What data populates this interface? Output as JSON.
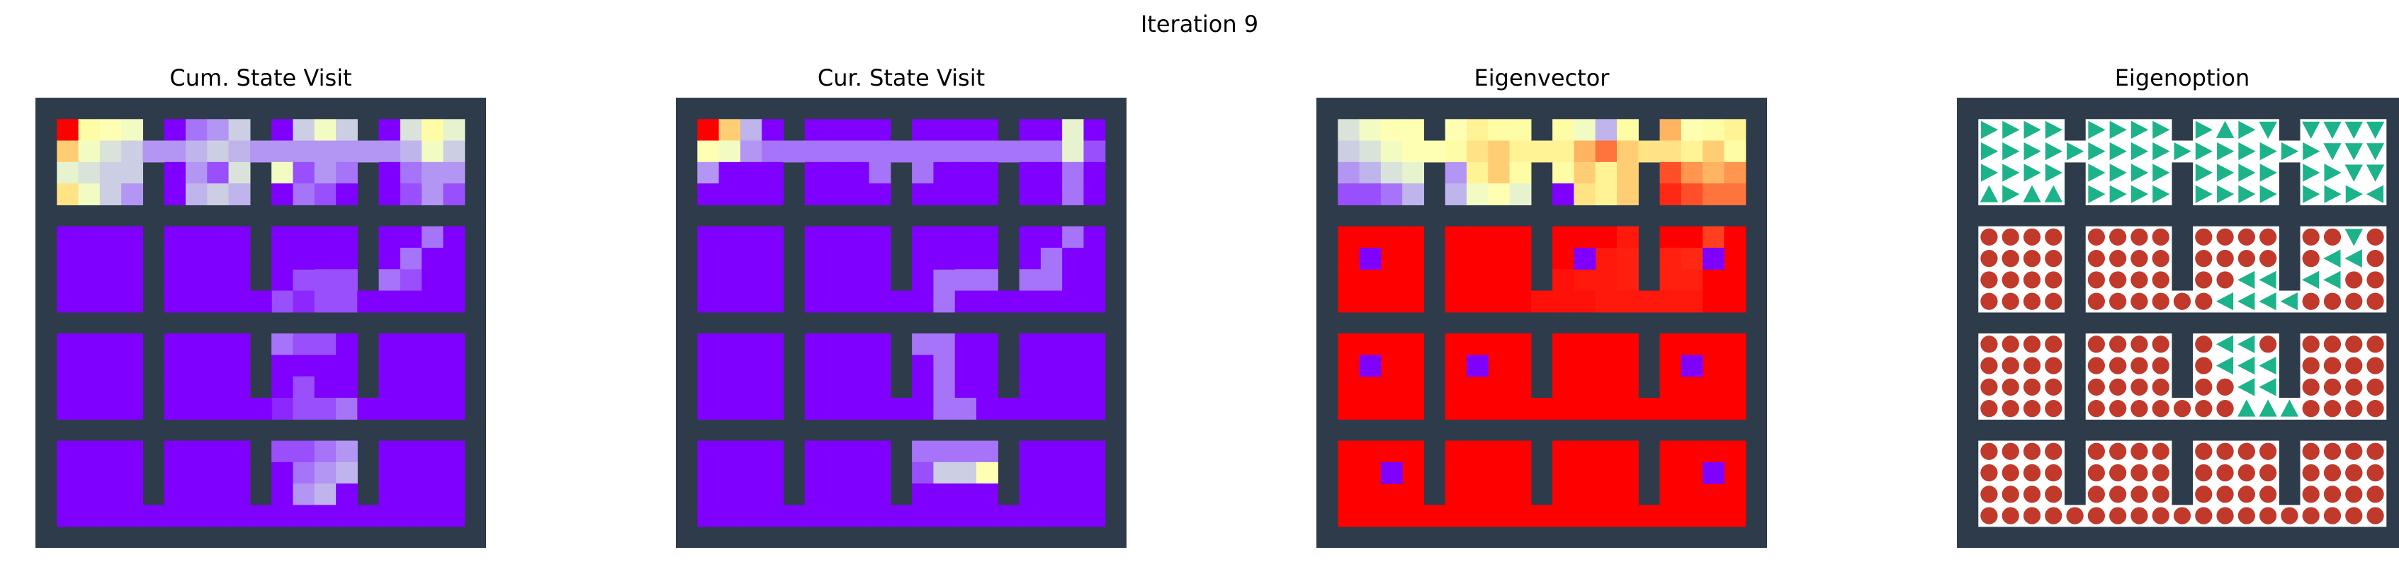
{
  "figure": {
    "suptitle": "Iteration 9"
  },
  "colors": {
    "wall": "#2e3b4b",
    "free_background": "#ffffff",
    "option_arrow": "#1db38a",
    "option_terminate": "#c0392b",
    "heat_low": "#7f00ff",
    "heat_high": "#ff0000"
  },
  "chart_data": [
    {
      "type": "heatmap",
      "title": "Cum. State Visit",
      "colormap": "rainbow",
      "grid": "4x4 rooms of 4x4 cells",
      "values": [
        [
          1.0,
          0.55,
          0.5,
          0.45,
          0,
          0.15,
          0.2,
          0.3,
          0,
          0.3,
          0.45,
          0.3,
          0,
          0.35,
          0.55,
          0.4
        ],
        [
          0.7,
          0.45,
          0.35,
          0.3,
          0.2,
          0.25,
          0.3,
          0.25,
          0.2,
          0.2,
          0.2,
          0.2,
          0.2,
          0.25,
          0.45,
          0.3
        ],
        [
          0.4,
          0.35,
          0.3,
          0.3,
          0,
          0.2,
          0.1,
          0.35,
          0.45,
          0.1,
          0.2,
          0.15,
          0,
          0.15,
          0.2,
          0.2
        ],
        [
          0.65,
          0.45,
          0.3,
          0.2,
          0,
          0.25,
          0.3,
          0.25,
          0,
          0.15,
          0.1,
          0,
          0,
          0.1,
          0.2,
          0.1
        ],
        [
          0,
          0,
          0,
          0,
          0,
          0,
          0,
          0,
          0,
          0,
          0,
          0,
          0,
          0,
          0.15,
          0
        ],
        [
          0,
          0,
          0,
          0,
          0,
          0,
          0,
          0,
          0,
          0,
          0,
          0,
          0,
          0.15,
          0.15,
          0
        ],
        [
          0,
          0,
          0,
          0,
          0,
          0,
          0,
          0,
          0,
          0.1,
          0.1,
          0.1,
          0.15,
          0.1,
          0,
          0
        ],
        [
          0,
          0,
          0,
          0,
          0,
          0,
          0,
          0,
          0.1,
          0.05,
          0.1,
          0.1,
          0,
          0,
          0,
          0
        ],
        [
          0,
          0,
          0,
          0,
          0,
          0,
          0,
          0,
          0.15,
          0.1,
          0.1,
          0,
          0,
          0,
          0,
          0
        ],
        [
          0,
          0,
          0,
          0,
          0,
          0,
          0,
          0,
          0,
          0,
          0,
          0,
          0,
          0,
          0,
          0
        ],
        [
          0,
          0,
          0,
          0,
          0,
          0,
          0,
          0,
          0,
          0.1,
          0,
          0,
          0,
          0,
          0,
          0
        ],
        [
          0,
          0,
          0,
          0,
          0,
          0,
          0,
          0,
          0.05,
          0.1,
          0.1,
          0.15,
          0,
          0,
          0,
          0
        ],
        [
          0,
          0,
          0,
          0,
          0,
          0,
          0,
          0,
          0.1,
          0.1,
          0.15,
          0.2,
          0,
          0,
          0,
          0
        ],
        [
          0,
          0,
          0,
          0,
          0,
          0,
          0,
          0,
          0,
          0.15,
          0.2,
          0.25,
          0,
          0,
          0,
          0
        ],
        [
          0,
          0,
          0,
          0,
          0,
          0,
          0,
          0,
          0,
          0.2,
          0.25,
          0,
          0,
          0,
          0,
          0
        ],
        [
          0,
          0,
          0,
          0,
          0,
          0,
          0,
          0,
          0,
          0,
          0,
          0,
          0,
          0,
          0,
          0
        ]
      ]
    },
    {
      "type": "heatmap",
      "title": "Cur. State Visit",
      "colormap": "rainbow",
      "grid": "4x4 rooms of 4x4 cells",
      "values": [
        [
          1.0,
          0.7,
          0.25,
          0,
          0,
          0,
          0,
          0,
          0,
          0,
          0,
          0,
          0,
          0,
          0.4,
          0
        ],
        [
          0.5,
          0.45,
          0.2,
          0.15,
          0.15,
          0.15,
          0.15,
          0.15,
          0.15,
          0.15,
          0.15,
          0.15,
          0.15,
          0.15,
          0.4,
          0.1
        ],
        [
          0.2,
          0,
          0,
          0,
          0,
          0,
          0,
          0.15,
          0.15,
          0,
          0,
          0,
          0,
          0,
          0.15,
          0
        ],
        [
          0,
          0,
          0,
          0,
          0,
          0,
          0,
          0,
          0,
          0,
          0,
          0,
          0,
          0,
          0.15,
          0
        ],
        [
          0,
          0,
          0,
          0,
          0,
          0,
          0,
          0,
          0,
          0,
          0,
          0,
          0,
          0,
          0.15,
          0
        ],
        [
          0,
          0,
          0,
          0,
          0,
          0,
          0,
          0,
          0,
          0,
          0,
          0,
          0,
          0.15,
          0.15,
          0
        ],
        [
          0,
          0,
          0,
          0,
          0,
          0,
          0,
          0,
          0,
          0.15,
          0.15,
          0.15,
          0.15,
          0.15,
          0,
          0
        ],
        [
          0,
          0,
          0,
          0,
          0,
          0,
          0,
          0,
          0,
          0.15,
          0,
          0,
          0,
          0,
          0,
          0
        ],
        [
          0,
          0,
          0,
          0,
          0,
          0,
          0,
          0,
          0.15,
          0.15,
          0,
          0,
          0,
          0,
          0,
          0
        ],
        [
          0,
          0,
          0,
          0,
          0,
          0,
          0,
          0,
          0,
          0.15,
          0,
          0,
          0,
          0,
          0,
          0
        ],
        [
          0,
          0,
          0,
          0,
          0,
          0,
          0,
          0,
          0,
          0.15,
          0,
          0,
          0,
          0,
          0,
          0
        ],
        [
          0,
          0,
          0,
          0,
          0,
          0,
          0,
          0,
          0,
          0.15,
          0.15,
          0,
          0,
          0,
          0,
          0
        ],
        [
          0,
          0,
          0,
          0,
          0,
          0,
          0,
          0,
          0.15,
          0.15,
          0.15,
          0.15,
          0,
          0,
          0,
          0
        ],
        [
          0,
          0,
          0,
          0,
          0,
          0,
          0,
          0,
          0.1,
          0.3,
          0.3,
          0.5,
          0,
          0,
          0,
          0
        ],
        [
          0,
          0,
          0,
          0,
          0,
          0,
          0,
          0,
          0,
          0,
          0,
          0,
          0,
          0,
          0,
          0
        ],
        [
          0,
          0,
          0,
          0,
          0,
          0,
          0,
          0,
          0,
          0,
          0,
          0,
          0,
          0,
          0,
          0
        ]
      ]
    },
    {
      "type": "heatmap",
      "title": "Eigenvector",
      "colormap": "rainbow",
      "grid": "4x4 rooms of 4x4 cells",
      "values": [
        [
          0.35,
          0.45,
          0.5,
          0.5,
          0.5,
          0.6,
          0.55,
          0.55,
          0.55,
          0.45,
          0.25,
          0.55,
          0.75,
          0.5,
          0.55,
          0.6
        ],
        [
          0.3,
          0.35,
          0.45,
          0.5,
          0.55,
          0.65,
          0.7,
          0.6,
          0.6,
          0.75,
          0.85,
          0.7,
          0.65,
          0.6,
          0.7,
          0.55
        ],
        [
          0.2,
          0.25,
          0.35,
          0.4,
          0.2,
          0.6,
          0.7,
          0.55,
          0.55,
          0.7,
          0.6,
          0.7,
          0.9,
          0.8,
          0.75,
          0.8
        ],
        [
          0.1,
          0.1,
          0.15,
          0.25,
          0.25,
          0.45,
          0.5,
          0.4,
          0,
          0.65,
          0.6,
          0.7,
          0.95,
          0.9,
          0.85,
          0.85
        ],
        [
          1,
          1,
          1,
          1,
          1,
          1,
          1,
          1,
          1,
          1,
          1,
          0.97,
          1,
          1,
          0.92,
          1
        ],
        [
          1,
          1,
          1,
          1,
          1,
          1,
          1,
          1,
          1,
          1,
          0.97,
          0.96,
          0.96,
          0.95,
          0.95,
          1
        ],
        [
          1,
          1,
          1,
          1,
          1,
          1,
          1,
          1,
          0.98,
          0.97,
          0.97,
          0.96,
          0.96,
          0.96,
          1,
          1
        ],
        [
          1,
          1,
          1,
          1,
          1,
          1,
          1,
          1,
          0.98,
          0.98,
          0.97,
          0.97,
          0.97,
          0.97,
          1,
          1
        ],
        [
          1,
          1,
          1,
          1,
          1,
          1,
          1,
          1,
          1,
          1,
          1,
          1,
          1,
          1,
          1,
          1
        ],
        [
          1,
          1,
          1,
          1,
          1,
          1,
          1,
          1,
          1,
          1,
          1,
          1,
          1,
          1,
          1,
          1
        ],
        [
          1,
          1,
          1,
          1,
          1,
          1,
          1,
          1,
          1,
          1,
          1,
          1,
          1,
          1,
          1,
          1
        ],
        [
          1,
          1,
          1,
          1,
          1,
          1,
          1,
          1,
          1,
          1,
          1,
          1,
          1,
          1,
          1,
          1
        ],
        [
          1,
          1,
          1,
          1,
          1,
          1,
          1,
          1,
          1,
          1,
          1,
          1,
          1,
          1,
          1,
          1
        ],
        [
          1,
          1,
          1,
          1,
          1,
          1,
          1,
          1,
          1,
          1,
          1,
          1,
          1,
          1,
          1,
          1
        ],
        [
          1,
          1,
          1,
          1,
          1,
          1,
          1,
          1,
          1,
          1,
          1,
          1,
          1,
          1,
          1,
          1
        ],
        [
          1,
          1,
          1,
          1,
          1,
          1,
          1,
          1,
          1,
          1,
          1,
          1,
          1,
          1,
          1,
          1
        ]
      ]
    },
    {
      "type": "policy-map",
      "title": "Eigenoption",
      "encoding": "arrow = action direction (up, down, left, right); circle = terminate",
      "actions": [
        "RRRRRRRRRURDDDDD",
        "RRRRRRRRRRRRRDDD",
        "RRRRRRRRRRRRRRDD",
        "URUURRRRRRRRRRRL",
        "TTTTTTTTTTTTTTDT",
        "TTTTTTTTTTTTTLLT",
        "TTTTTTTTTTLLLLTT",
        "TTTTTTTTTLLLTTTT",
        "TTTTTTTTTLLTTTTT",
        "TTTTTTTTTLLLTTTT",
        "TTTTTTTTTTLLTTTT",
        "TTTTTTTTTTUUTTTT",
        "TTTTTTTTTTTTTTTT",
        "TTTTTTTTTTTTTTTT",
        "TTTTTTTTTTTTTTTT",
        "TTTTTTTTTTTTTTTT"
      ]
    }
  ]
}
